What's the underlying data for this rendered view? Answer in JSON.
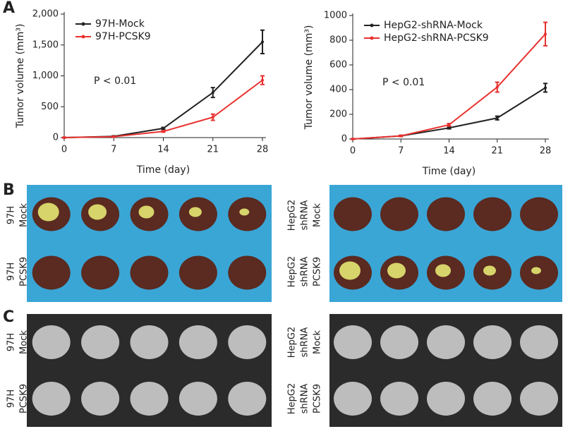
{
  "chart_data": [
    {
      "type": "line",
      "y_label": "Tumor volume (mm³)",
      "x_label": "Time (day)",
      "annotation": "P < 0.01",
      "x": [
        0,
        7,
        14,
        21,
        28
      ],
      "xlim": [
        0,
        28
      ],
      "xticks": [
        0,
        7,
        14,
        21,
        28
      ],
      "ylim": [
        0,
        2000
      ],
      "yticks": [
        0,
        500,
        {
          "value": 1000,
          "label": "1,000"
        },
        {
          "value": 1500,
          "label": "1,500"
        },
        {
          "value": 2000,
          "label": "2,000"
        }
      ],
      "series": [
        {
          "name": "97H-Mock",
          "color": "#222222",
          "values": [
            0,
            20,
            150,
            730,
            1550
          ],
          "errors": [
            5,
            8,
            15,
            80,
            190
          ]
        },
        {
          "name": "97H-PCSK9",
          "color": "#e8312f",
          "values": [
            0,
            15,
            100,
            330,
            930
          ],
          "errors": [
            5,
            6,
            12,
            50,
            70
          ]
        }
      ]
    },
    {
      "type": "line",
      "y_label": "Tumor volume (mm³)",
      "x_label": "Time (day)",
      "annotation": "P < 0.01",
      "x": [
        0,
        7,
        14,
        21,
        28
      ],
      "xlim": [
        0,
        28
      ],
      "xticks": [
        0,
        7,
        14,
        21,
        28
      ],
      "ylim": [
        0,
        1000
      ],
      "yticks": [
        0,
        200,
        400,
        600,
        800,
        1000
      ],
      "series": [
        {
          "name": "HepG2-shRNA-Mock",
          "color": "#222222",
          "values": [
            0,
            25,
            90,
            170,
            415
          ],
          "errors": [
            2,
            5,
            8,
            15,
            35
          ]
        },
        {
          "name": "HepG2-shRNA-PCSK9",
          "color": "#e8312f",
          "values": [
            0,
            25,
            115,
            420,
            850
          ],
          "errors": [
            2,
            5,
            10,
            40,
            95
          ]
        }
      ]
    }
  ],
  "panel_labels": [
    "A",
    "B",
    "C"
  ],
  "row_labels": {
    "B": {
      "left": [
        [
          "97H",
          "Mock"
        ],
        [
          "97H",
          "PCSK9"
        ]
      ],
      "right": [
        [
          "HepG2",
          "shRNA",
          "Mock"
        ],
        [
          "HepG2",
          "shRNA",
          "PCSK9"
        ]
      ]
    },
    "C": {
      "left": [
        [
          "97H",
          "Mock"
        ],
        [
          "97H",
          "PCSK9"
        ]
      ],
      "right": [
        [
          "HepG2",
          "shRNA",
          "Mock"
        ],
        [
          "HepG2",
          "shRNA",
          "PCSK9"
        ]
      ]
    }
  }
}
